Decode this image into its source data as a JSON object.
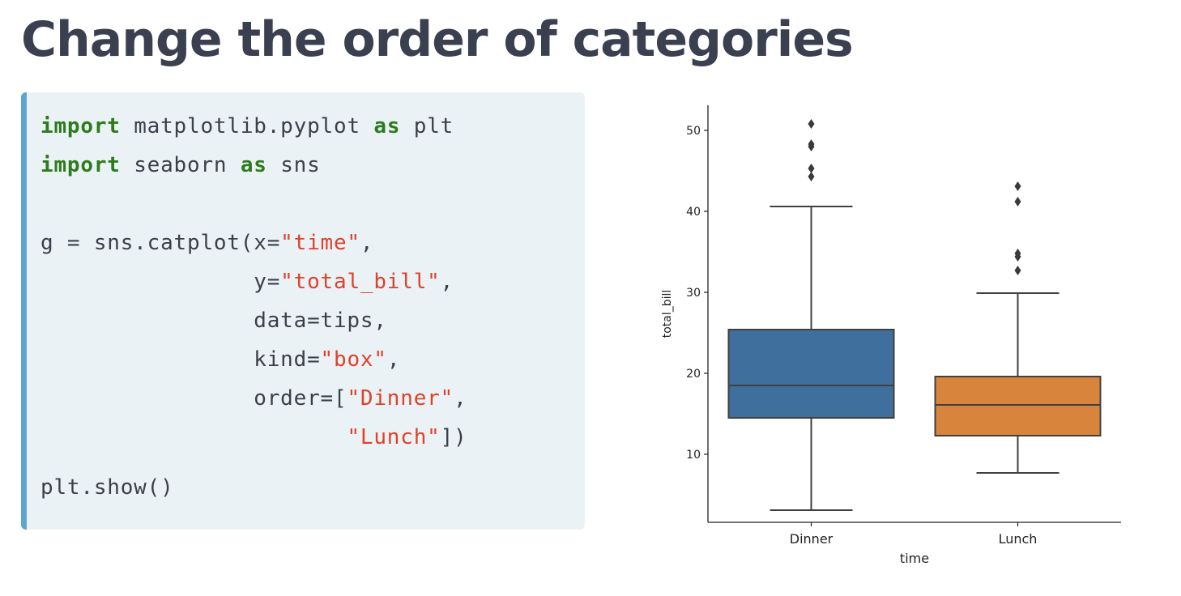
{
  "title": "Change the order of categories",
  "code": {
    "lines": [
      [
        {
          "t": "import",
          "k": "kw"
        },
        {
          "t": " matplotlib.pyplot "
        },
        {
          "t": "as",
          "k": "kw"
        },
        {
          "t": " plt"
        }
      ],
      [
        {
          "t": "import",
          "k": "kw"
        },
        {
          "t": " seaborn "
        },
        {
          "t": "as",
          "k": "kw"
        },
        {
          "t": " sns"
        }
      ],
      [],
      [
        {
          "t": "g = sns.catplot(x="
        },
        {
          "t": "\"time\"",
          "k": "str"
        },
        {
          "t": ","
        }
      ],
      [
        {
          "t": "                y="
        },
        {
          "t": "\"total_bill\"",
          "k": "str"
        },
        {
          "t": ","
        }
      ],
      [
        {
          "t": "                data=tips,"
        }
      ],
      [
        {
          "t": "                kind="
        },
        {
          "t": "\"box\"",
          "k": "str"
        },
        {
          "t": ","
        }
      ],
      [
        {
          "t": "                order=["
        },
        {
          "t": "\"Dinner\"",
          "k": "str"
        },
        {
          "t": ","
        }
      ],
      [
        {
          "t": "                       "
        },
        {
          "t": "\"Lunch\"",
          "k": "str"
        },
        {
          "t": "])"
        }
      ],
      [
        {
          "t": "plt.show()"
        }
      ]
    ]
  },
  "chart_data": {
    "type": "box",
    "xlabel": "time",
    "ylabel": "total_bill",
    "categories": [
      "Dinner",
      "Lunch"
    ],
    "colors": [
      "#3f709d",
      "#d8843c"
    ],
    "yticks": [
      10,
      20,
      30,
      40,
      50
    ],
    "ylim": [
      1.6,
      53.1
    ],
    "grid": false,
    "boxes": [
      {
        "category": "Dinner",
        "whisker_low": 3.1,
        "q1": 14.5,
        "median": 18.5,
        "q3": 25.4,
        "whisker_high": 40.6,
        "outliers": [
          44.3,
          45.3,
          48.0,
          48.3,
          50.8
        ]
      },
      {
        "category": "Lunch",
        "whisker_low": 7.7,
        "q1": 12.3,
        "median": 16.1,
        "q3": 19.6,
        "whisker_high": 29.9,
        "outliers": [
          32.7,
          34.4,
          34.8,
          41.2,
          43.1
        ]
      }
    ]
  }
}
